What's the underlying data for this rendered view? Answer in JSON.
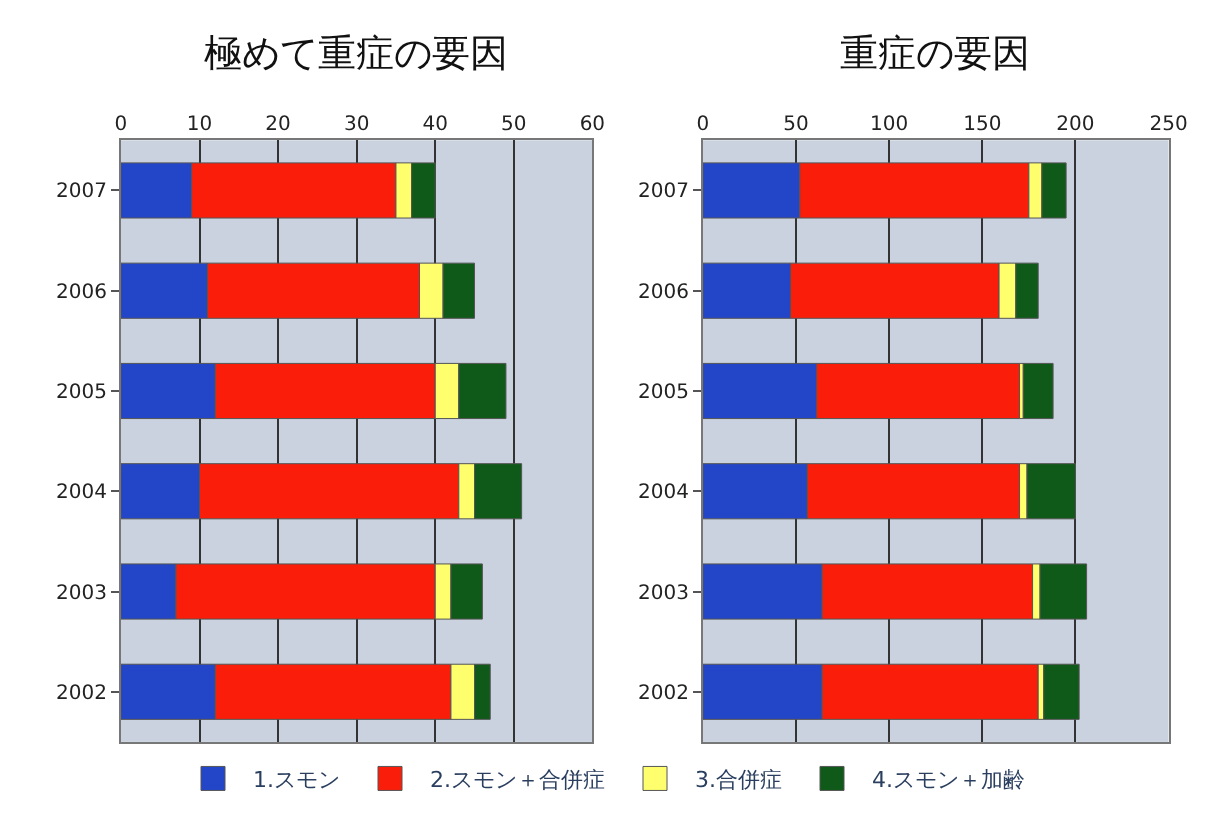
{
  "chart_data": [
    {
      "type": "bar",
      "title": "極めて重症の要因",
      "orientation": "horizontal",
      "stacked": true,
      "categories": [
        "2007",
        "2006",
        "2005",
        "2004",
        "2003",
        "2002"
      ],
      "xlim": [
        0,
        60
      ],
      "xticks": [
        0,
        10,
        20,
        30,
        40,
        50,
        60
      ],
      "grid": "x",
      "legend": "bottom",
      "series": [
        {
          "name": "1.スモン",
          "color": "#2346c8",
          "values": [
            9,
            11,
            12,
            10,
            7,
            12
          ]
        },
        {
          "name": "2.スモン＋合併症",
          "color": "#fa1e0a",
          "values": [
            26,
            27,
            28,
            33,
            33,
            30
          ]
        },
        {
          "name": "3.合併症",
          "color": "#ffff6e",
          "values": [
            2,
            3,
            3,
            2,
            2,
            3
          ]
        },
        {
          "name": "4.スモン＋加齢",
          "color": "#0f5a19",
          "values": [
            3,
            4,
            6,
            6,
            4,
            2
          ]
        }
      ]
    },
    {
      "type": "bar",
      "title": "重症の要因",
      "orientation": "horizontal",
      "stacked": true,
      "categories": [
        "2007",
        "2006",
        "2005",
        "2004",
        "2003",
        "2002"
      ],
      "xlim": [
        0,
        250
      ],
      "xticks": [
        0,
        50,
        100,
        150,
        200,
        250
      ],
      "grid": "x",
      "series": [
        {
          "color": "#2346c8",
          "values": [
            52,
            47,
            61,
            56,
            64,
            64
          ]
        },
        {
          "color": "#fa1e0a",
          "values": [
            123,
            112,
            109,
            114,
            113,
            116
          ]
        },
        {
          "color": "#ffff6e",
          "values": [
            7,
            9,
            2,
            4,
            4,
            3
          ]
        },
        {
          "color": "#0f5a19",
          "values": [
            13,
            12,
            16,
            26,
            25,
            19
          ]
        }
      ]
    }
  ]
}
